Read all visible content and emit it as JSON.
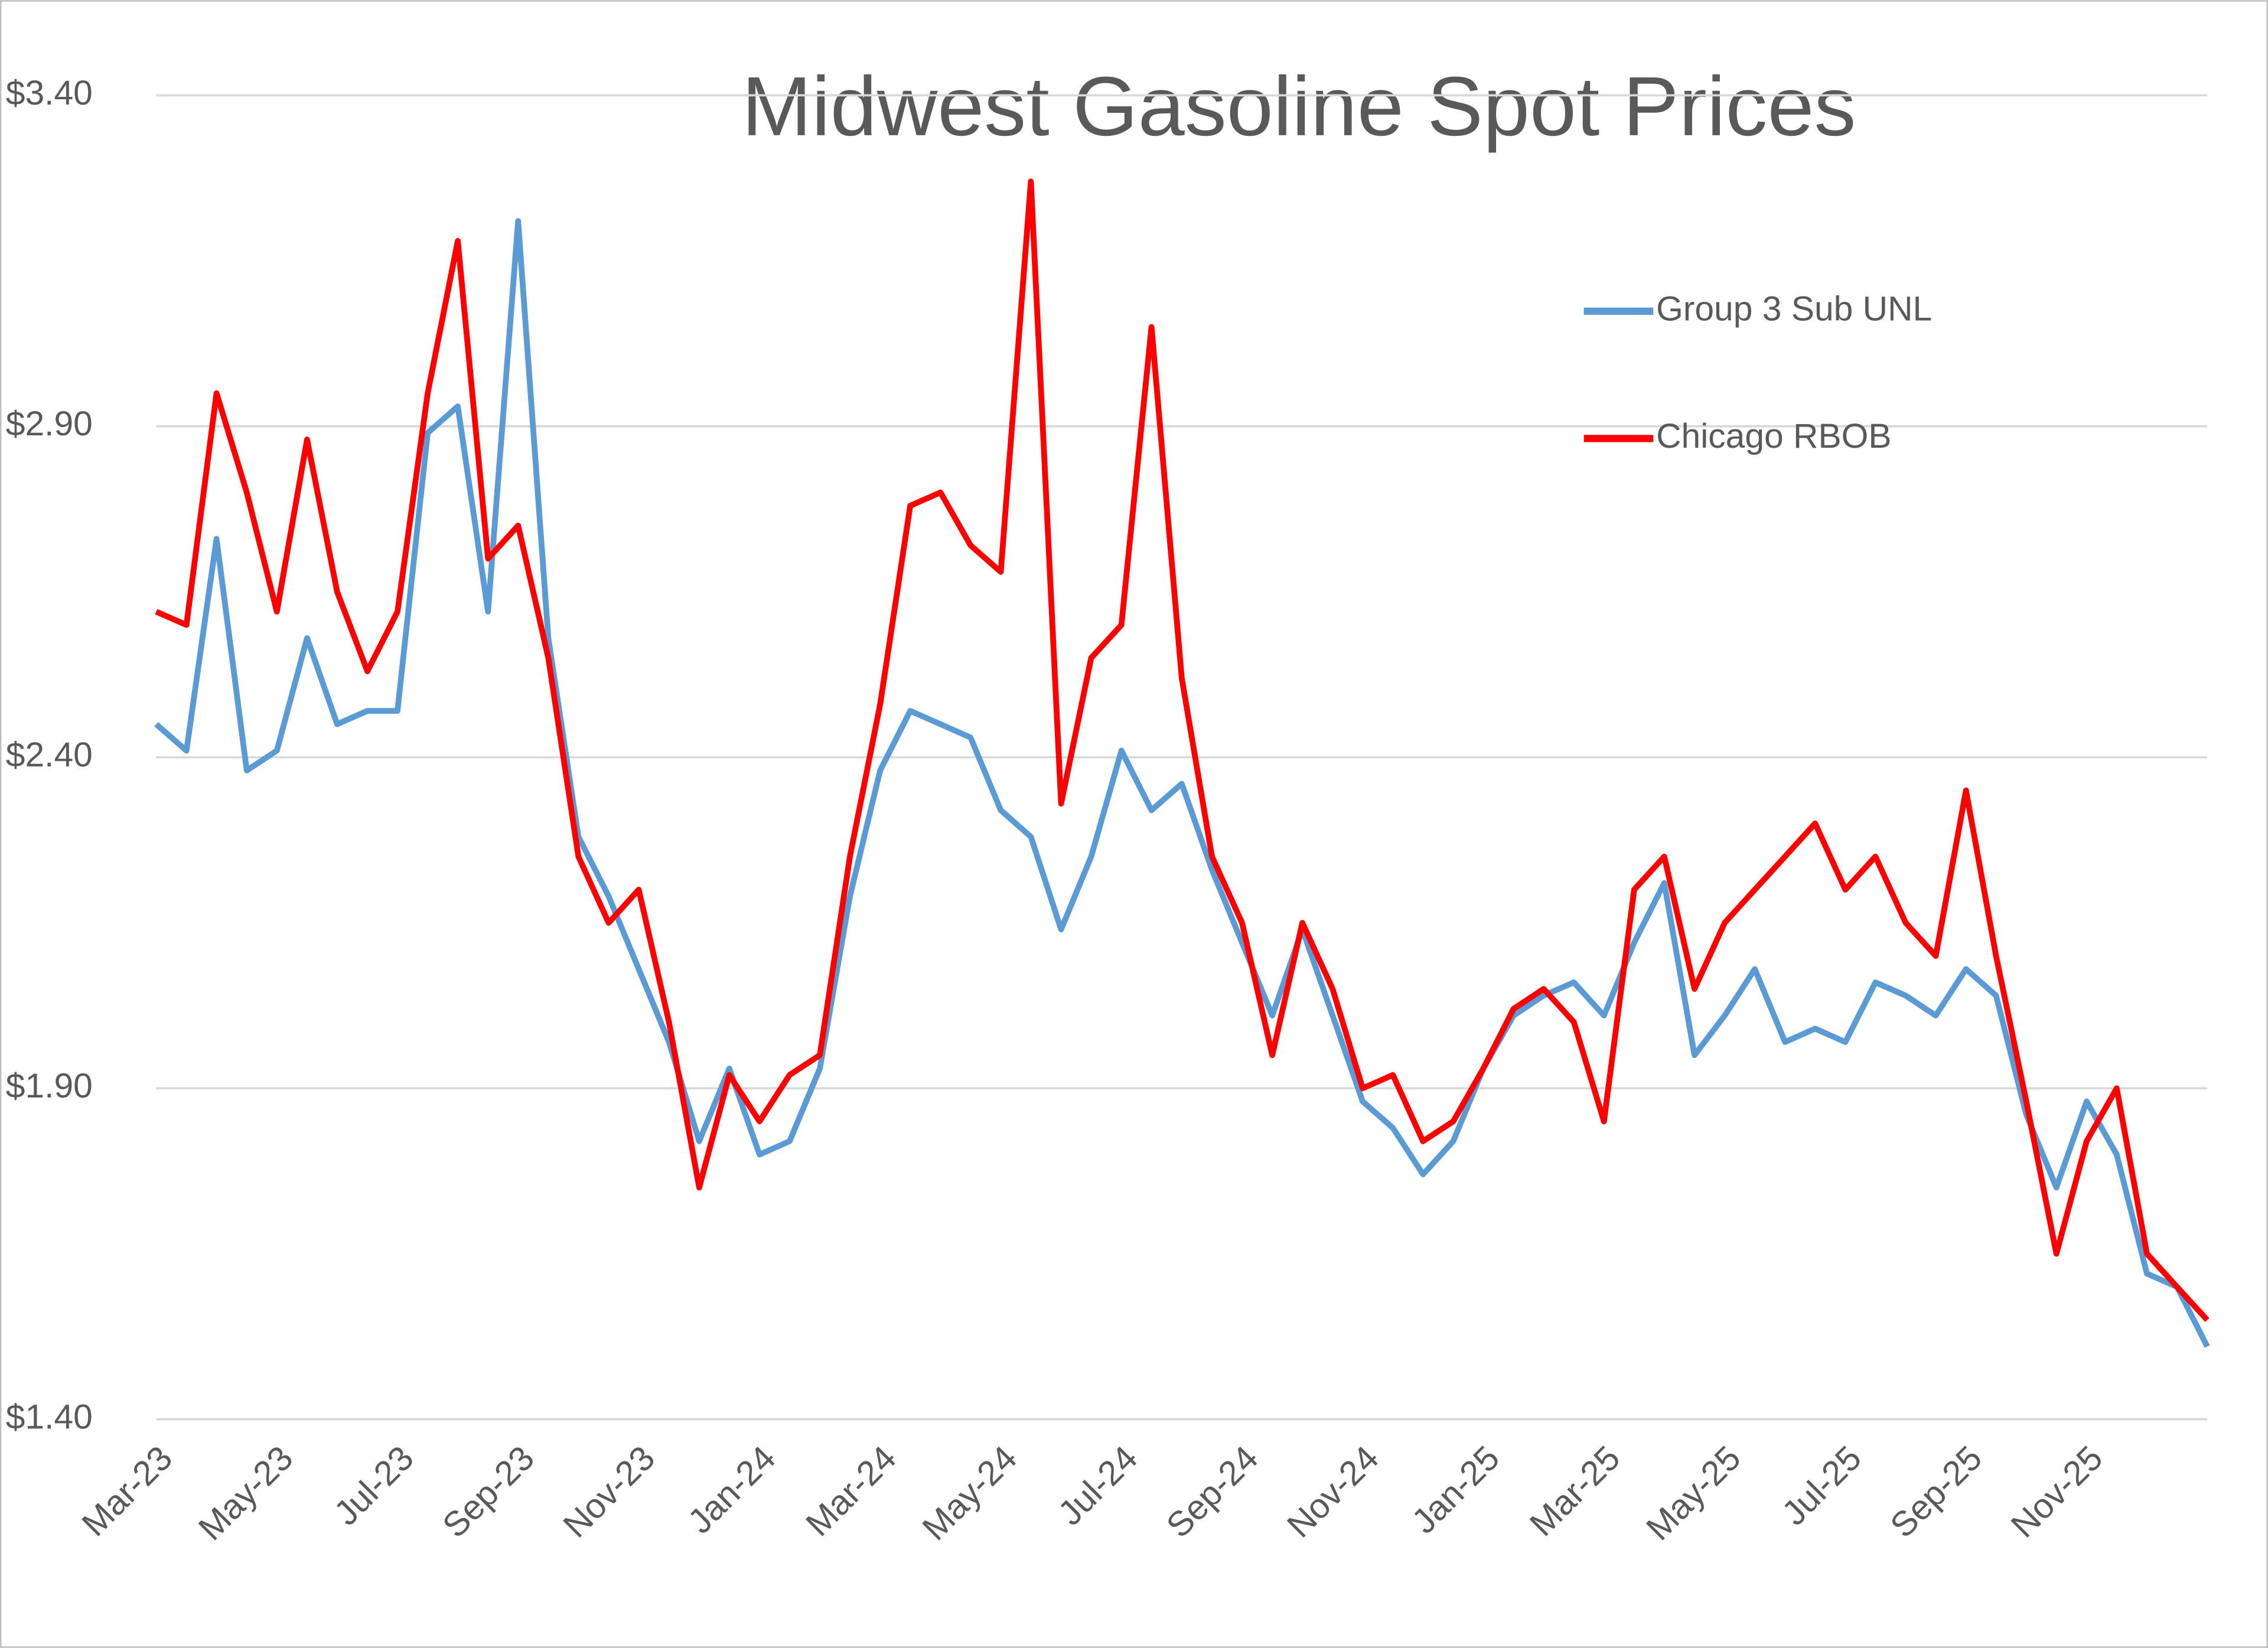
{
  "chart_data": {
    "type": "line",
    "title": "Midwest Gasoline Spot Prices",
    "categories": [
      "Mar-23",
      null,
      null,
      null,
      "May-23",
      null,
      null,
      null,
      "Jul-23",
      null,
      null,
      null,
      "Sep-23",
      null,
      null,
      null,
      "Nov-23",
      null,
      null,
      null,
      "Jan-24",
      null,
      null,
      null,
      "Mar-24",
      null,
      null,
      null,
      "May-24",
      null,
      null,
      null,
      "Jul-24",
      null,
      null,
      null,
      "Sep-24",
      null,
      null,
      null,
      "Nov-24",
      null,
      null,
      null,
      "Jan-25",
      null,
      null,
      null,
      "Mar-25",
      null,
      null,
      null,
      "May-25",
      null,
      null,
      null,
      "Jul-25",
      null,
      null,
      null,
      "Sep-25",
      null,
      null,
      null,
      "Nov-25",
      null,
      null,
      null,
      null
    ],
    "series": [
      {
        "name": "Group 3 Sub UNL",
        "color": "#5b9bd5",
        "values": [
          2.45,
          2.41,
          2.73,
          2.38,
          2.41,
          2.58,
          2.45,
          2.47,
          2.47,
          2.89,
          2.93,
          2.62,
          3.21,
          2.58,
          2.28,
          2.19,
          2.08,
          1.97,
          1.82,
          1.93,
          1.8,
          1.82,
          1.93,
          2.19,
          2.38,
          2.47,
          2.45,
          2.43,
          2.32,
          2.28,
          2.14,
          2.25,
          2.41,
          2.32,
          2.36,
          2.23,
          2.12,
          2.01,
          2.14,
          2.01,
          1.88,
          1.84,
          1.77,
          1.82,
          1.93,
          2.01,
          2.04,
          2.06,
          2.01,
          2.12,
          2.21,
          1.95,
          2.01,
          2.08,
          1.97,
          1.99,
          1.97,
          2.06,
          2.04,
          2.01,
          2.08,
          2.04,
          1.86,
          1.75,
          1.88,
          1.8,
          1.62,
          1.6,
          1.51
        ]
      },
      {
        "name": "Chicago RBOB",
        "color": "#ff0000",
        "values": [
          2.62,
          2.6,
          2.95,
          2.8,
          2.62,
          2.88,
          2.65,
          2.53,
          2.62,
          2.95,
          3.18,
          2.7,
          2.75,
          2.55,
          2.25,
          2.15,
          2.2,
          2.0,
          1.75,
          1.92,
          1.85,
          1.92,
          1.95,
          2.25,
          2.48,
          2.78,
          2.8,
          2.72,
          2.68,
          3.27,
          2.33,
          2.55,
          2.6,
          3.05,
          2.52,
          2.25,
          2.15,
          1.95,
          2.15,
          2.05,
          1.9,
          1.92,
          1.82,
          1.85,
          1.93,
          2.02,
          2.05,
          2.0,
          1.85,
          2.2,
          2.25,
          2.05,
          2.15,
          2.2,
          2.25,
          2.3,
          2.2,
          2.25,
          2.15,
          2.1,
          2.35,
          2.1,
          1.88,
          1.65,
          1.82,
          1.9,
          1.65,
          1.6,
          1.55
        ]
      }
    ],
    "ylim": [
      1.4,
      3.5
    ],
    "yticks": [
      {
        "value": 1.4,
        "label": "$1.40"
      },
      {
        "value": 1.9,
        "label": "$1.90"
      },
      {
        "value": 2.4,
        "label": "$2.40"
      },
      {
        "value": 2.9,
        "label": "$2.90"
      },
      {
        "value": 3.4,
        "label": "$3.40"
      }
    ],
    "grid": true,
    "legend": "upper right"
  }
}
